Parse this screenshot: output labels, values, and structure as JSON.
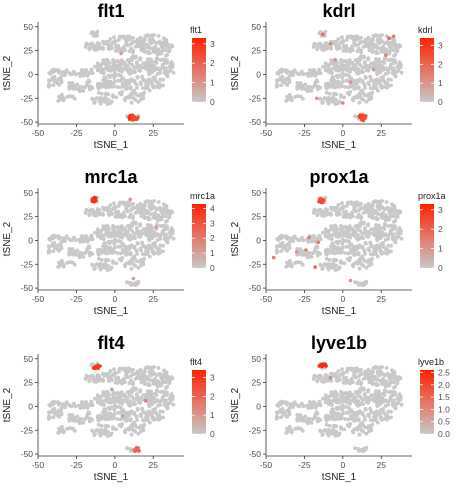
{
  "chart_data": [
    {
      "type": "scatter",
      "title": "flt1",
      "xlabel": "tSNE_1",
      "ylabel": "tSNE_2",
      "xlim": [
        -50,
        45
      ],
      "ylim": [
        -52,
        55
      ],
      "x_ticks": [
        -50,
        -25,
        0,
        25
      ],
      "y_ticks": [
        -50,
        -25,
        0,
        25,
        50
      ],
      "legend": {
        "title": "flt1",
        "ticks": [
          0,
          1,
          2,
          3
        ],
        "max": 3.3
      },
      "colors": {
        "low": "#c8c8c8",
        "high": "#ff2200"
      },
      "highlights": [
        {
          "x": 11,
          "y": -45,
          "value": 3.0,
          "shape": "cluster"
        },
        {
          "x": 13,
          "y": -46,
          "value": 2.5,
          "shape": "cluster"
        },
        {
          "x": 4,
          "y": 22,
          "value": 1.0,
          "shape": "point"
        }
      ]
    },
    {
      "type": "scatter",
      "title": "kdrl",
      "xlabel": "tSNE_1",
      "ylabel": "tSNE_2",
      "xlim": [
        -50,
        45
      ],
      "ylim": [
        -52,
        55
      ],
      "x_ticks": [
        -50,
        -25,
        0,
        25
      ],
      "y_ticks": [
        -50,
        -25,
        0,
        25,
        50
      ],
      "legend": {
        "title": "kdrl",
        "ticks": [
          0,
          1,
          2,
          3
        ],
        "max": 3.4
      },
      "colors": {
        "low": "#c8c8c8",
        "high": "#ff2200"
      },
      "highlights": [
        {
          "x": 12,
          "y": -45,
          "value": 3.0,
          "shape": "cluster"
        },
        {
          "x": 14,
          "y": -46,
          "value": 2.5,
          "shape": "cluster"
        },
        {
          "x": -13,
          "y": 42,
          "value": 2.0,
          "shape": "point"
        },
        {
          "x": -8,
          "y": 32,
          "value": 1.5,
          "shape": "point"
        },
        {
          "x": 30,
          "y": 38,
          "value": 2.0,
          "shape": "point"
        },
        {
          "x": 33,
          "y": 40,
          "value": 1.5,
          "shape": "point"
        },
        {
          "x": 28,
          "y": 20,
          "value": 1.5,
          "shape": "point"
        },
        {
          "x": 20,
          "y": 5,
          "value": 1.0,
          "shape": "point"
        },
        {
          "x": 5,
          "y": -8,
          "value": 1.0,
          "shape": "point"
        },
        {
          "x": -5,
          "y": 15,
          "value": 1.0,
          "shape": "point"
        },
        {
          "x": -17,
          "y": -25,
          "value": 1.0,
          "shape": "point"
        },
        {
          "x": 0,
          "y": -30,
          "value": 1.5,
          "shape": "point"
        }
      ]
    },
    {
      "type": "scatter",
      "title": "mrc1a",
      "xlabel": "tSNE_1",
      "ylabel": "tSNE_2",
      "xlim": [
        -50,
        45
      ],
      "ylim": [
        -52,
        55
      ],
      "x_ticks": [
        -50,
        -25,
        0,
        25
      ],
      "y_ticks": [
        -50,
        -25,
        0,
        25,
        50
      ],
      "legend": {
        "title": "mrc1a",
        "ticks": [
          0,
          1,
          2,
          3,
          4
        ],
        "max": 4.3
      },
      "colors": {
        "low": "#c8c8c8",
        "high": "#ff2200"
      },
      "highlights": [
        {
          "x": -13,
          "y": 43,
          "value": 4.0,
          "shape": "cluster"
        },
        {
          "x": 10,
          "y": 43,
          "value": 1.5,
          "shape": "point"
        },
        {
          "x": 27,
          "y": 14,
          "value": 1.0,
          "shape": "point"
        },
        {
          "x": 12,
          "y": -40,
          "value": 1.0,
          "shape": "point"
        }
      ]
    },
    {
      "type": "scatter",
      "title": "prox1a",
      "xlabel": "tSNE_1",
      "ylabel": "tSNE_2",
      "xlim": [
        -50,
        45
      ],
      "ylim": [
        -52,
        55
      ],
      "x_ticks": [
        -50,
        -25,
        0,
        25
      ],
      "y_ticks": [
        -50,
        -25,
        0,
        25,
        50
      ],
      "legend": {
        "title": "prox1a",
        "ticks": [
          0,
          1,
          2,
          3
        ],
        "max": 3.3
      },
      "colors": {
        "low": "#c8c8c8",
        "high": "#ff2200"
      },
      "highlights": [
        {
          "x": -14,
          "y": 42,
          "value": 2.5,
          "shape": "cluster"
        },
        {
          "x": -22,
          "y": 3,
          "value": 1.5,
          "shape": "point"
        },
        {
          "x": -16,
          "y": -2,
          "value": 1.5,
          "shape": "point"
        },
        {
          "x": -24,
          "y": -10,
          "value": 1.5,
          "shape": "point"
        },
        {
          "x": -18,
          "y": -28,
          "value": 2.0,
          "shape": "point"
        },
        {
          "x": -45,
          "y": -18,
          "value": 1.5,
          "shape": "point"
        },
        {
          "x": -30,
          "y": -12,
          "value": 1.0,
          "shape": "point"
        },
        {
          "x": 5,
          "y": -42,
          "value": 1.0,
          "shape": "point"
        }
      ]
    },
    {
      "type": "scatter",
      "title": "flt4",
      "xlabel": "tSNE_1",
      "ylabel": "tSNE_2",
      "xlim": [
        -50,
        45
      ],
      "ylim": [
        -52,
        55
      ],
      "x_ticks": [
        -50,
        -25,
        0,
        25
      ],
      "y_ticks": [
        -50,
        -25,
        0,
        25,
        50
      ],
      "legend": {
        "title": "flt4",
        "ticks": [
          0,
          1,
          2,
          3
        ],
        "max": 3.4
      },
      "colors": {
        "low": "#c8c8c8",
        "high": "#ff2200"
      },
      "highlights": [
        {
          "x": -12,
          "y": 42,
          "value": 3.0,
          "shape": "cluster"
        },
        {
          "x": 14,
          "y": -45,
          "value": 2.0,
          "shape": "cluster"
        },
        {
          "x": 20,
          "y": 6,
          "value": 1.5,
          "shape": "point"
        },
        {
          "x": 5,
          "y": -10,
          "value": 1.0,
          "shape": "point"
        },
        {
          "x": -2,
          "y": 18,
          "value": 1.0,
          "shape": "point"
        }
      ]
    },
    {
      "type": "scatter",
      "title": "lyve1b",
      "xlabel": "tSNE_1",
      "ylabel": "tSNE_2",
      "xlim": [
        -50,
        45
      ],
      "ylim": [
        -52,
        55
      ],
      "x_ticks": [
        -50,
        -25,
        0,
        25
      ],
      "y_ticks": [
        -50,
        -25,
        0,
        25,
        50
      ],
      "legend": {
        "title": "lyve1b",
        "ticks": [
          0.0,
          0.5,
          1.0,
          1.5,
          2.0,
          2.5
        ],
        "max": 2.6
      },
      "colors": {
        "low": "#c8c8c8",
        "high": "#ff2200"
      },
      "highlights": [
        {
          "x": -13,
          "y": 43,
          "value": 2.5,
          "shape": "cluster"
        },
        {
          "x": -8,
          "y": 30,
          "value": 1.0,
          "shape": "point"
        }
      ]
    }
  ]
}
